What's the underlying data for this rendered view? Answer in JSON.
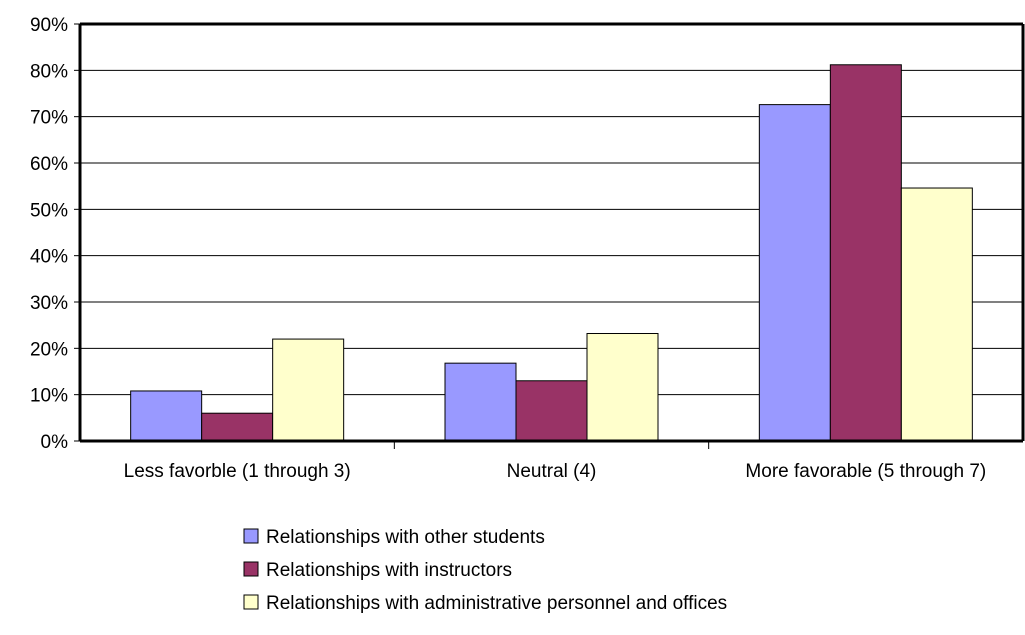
{
  "chart_data": {
    "type": "bar",
    "title": "",
    "xlabel": "",
    "ylabel": "",
    "ylim": [
      0,
      0.9
    ],
    "yticks": [
      0,
      0.1,
      0.2,
      0.3,
      0.4,
      0.5,
      0.6,
      0.7,
      0.8,
      0.9
    ],
    "ytick_labels": [
      "0%",
      "10%",
      "20%",
      "30%",
      "40%",
      "50%",
      "60%",
      "70%",
      "80%",
      "90%"
    ],
    "grid": true,
    "legend_position": "bottom",
    "categories": [
      "Less favorble (1 through 3)",
      "Neutral (4)",
      "More favorable (5 through 7)"
    ],
    "series": [
      {
        "name": "Relationships with other students",
        "color": "#9999ff",
        "values": [
          0.108,
          0.168,
          0.726
        ]
      },
      {
        "name": "Relationships with instructors",
        "color": "#993366",
        "values": [
          0.06,
          0.13,
          0.812
        ]
      },
      {
        "name": "Relationships with administrative personnel and offices",
        "color": "#ffffcc",
        "values": [
          0.22,
          0.232,
          0.546
        ]
      }
    ]
  }
}
